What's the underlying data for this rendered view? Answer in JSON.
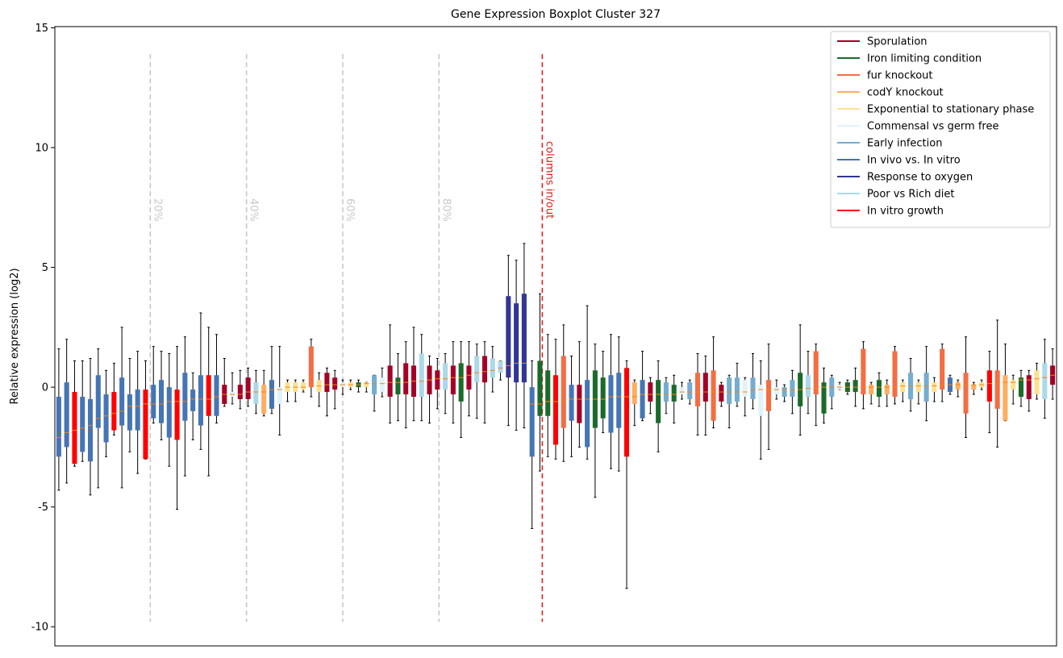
{
  "chart_data": {
    "type": "box",
    "title": "Gene Expression Boxplot Cluster 327",
    "ylabel": "Relative expression (log2)",
    "ylim": [
      -10.8,
      15.05
    ],
    "yticks": [
      -10,
      -5,
      0,
      5,
      10,
      15
    ],
    "legend": "upper right",
    "median_color": "#ff7f0e",
    "whisker_color": "#000000",
    "series": [
      {
        "name": "Sporulation",
        "color": "#a50026"
      },
      {
        "name": "Iron limiting condition",
        "color": "#1a6b2a"
      },
      {
        "name": "fur knockout",
        "color": "#f46d43"
      },
      {
        "name": "codY knockout",
        "color": "#fdae61"
      },
      {
        "name": "Exponential to stationary phase",
        "color": "#fee090"
      },
      {
        "name": "Commensal vs germ free",
        "color": "#e0f3f8"
      },
      {
        "name": "Early infection",
        "color": "#74add1"
      },
      {
        "name": "In vivo vs. In vitro",
        "color": "#4575b4"
      },
      {
        "name": "Response to oxygen",
        "color": "#313695"
      },
      {
        "name": "Poor vs Rich diet",
        "color": "#abd9e9"
      },
      {
        "name": "In vitro growth",
        "color": "#ff0000"
      }
    ],
    "vline_range": [
      -9.8,
      13.9
    ],
    "vlines": [
      {
        "x": 12.6,
        "label": "20%",
        "color": "#c8c8c8"
      },
      {
        "x": 24.8,
        "label": "40%",
        "color": "#c8c8c8"
      },
      {
        "x": 37.0,
        "label": "60%",
        "color": "#c8c8c8"
      },
      {
        "x": 49.2,
        "label": "80%",
        "color": "#c8c8c8"
      },
      {
        "x": 62.3,
        "label": "columns in/out",
        "color": "#e0201b"
      }
    ],
    "boxes": [
      {
        "group": 7,
        "stats": [
          -4.3,
          -2.9,
          -2.1,
          -0.4,
          1.6
        ]
      },
      {
        "group": 7,
        "stats": [
          -4,
          -2.5,
          -1.9,
          0.2,
          2
        ]
      },
      {
        "group": 10,
        "stats": [
          -3.3,
          -3.2,
          -1.8,
          -0.2,
          1.1
        ]
      },
      {
        "group": 7,
        "stats": [
          -3.1,
          -2.7,
          -1.7,
          -0.4,
          1.1
        ]
      },
      {
        "group": 7,
        "stats": [
          -4.5,
          -3.1,
          -1.6,
          -0.5,
          1.2
        ]
      },
      {
        "group": 7,
        "stats": [
          -4.2,
          -1.7,
          -1.3,
          0.5,
          1.6
        ]
      },
      {
        "group": 7,
        "stats": [
          -2.9,
          -2.3,
          -1.2,
          -0.3,
          0.7
        ]
      },
      {
        "group": 10,
        "stats": [
          -2,
          -1.8,
          -1.1,
          -0.2,
          1
        ]
      },
      {
        "group": 7,
        "stats": [
          -4.2,
          -1.6,
          -1,
          0.4,
          2.5
        ]
      },
      {
        "group": 7,
        "stats": [
          -2.7,
          -1.8,
          -0.8,
          -0.3,
          1.2
        ]
      },
      {
        "group": 7,
        "stats": [
          -3.6,
          -1.8,
          -0.8,
          -0.1,
          1.5
        ]
      },
      {
        "group": 10,
        "stats": [
          -3,
          -3,
          -0.7,
          -0.1,
          1.1
        ]
      },
      {
        "group": 7,
        "stats": [
          -1.5,
          -1.3,
          -0.7,
          0.1,
          1.7
        ]
      },
      {
        "group": 7,
        "stats": [
          -2.2,
          -1.5,
          -0.7,
          0.3,
          1.5
        ]
      },
      {
        "group": 7,
        "stats": [
          -3.3,
          -2.1,
          -0.6,
          0,
          1.4
        ]
      },
      {
        "group": 10,
        "stats": [
          -5.1,
          -2.2,
          -0.6,
          -0.1,
          1.7
        ]
      },
      {
        "group": 7,
        "stats": [
          -3.7,
          -1.4,
          -0.6,
          0.6,
          2.1
        ]
      },
      {
        "group": 7,
        "stats": [
          -2.2,
          -1,
          -0.5,
          -0.1,
          0.6
        ]
      },
      {
        "group": 7,
        "stats": [
          -2.6,
          -1.6,
          -0.5,
          0.5,
          3.1
        ]
      },
      {
        "group": 10,
        "stats": [
          -3.7,
          -1.2,
          -0.5,
          0.5,
          2.5
        ]
      },
      {
        "group": 7,
        "stats": [
          -1.5,
          -1.2,
          -0.4,
          0.5,
          2.2
        ]
      },
      {
        "group": 0,
        "stats": [
          -0.8,
          -0.7,
          -0.3,
          0.1,
          1.2
        ]
      },
      {
        "group": 5,
        "stats": [
          -0.7,
          -0.4,
          -0.3,
          -0.2,
          0.6
        ]
      },
      {
        "group": 0,
        "stats": [
          -0.9,
          -0.5,
          -0.3,
          0.1,
          0.7
        ]
      },
      {
        "group": 0,
        "stats": [
          -0.8,
          -0.5,
          -0.2,
          0.4,
          0.8
        ]
      },
      {
        "group": 9,
        "stats": [
          -1.1,
          -0.7,
          -0.2,
          0.2,
          0.7
        ]
      },
      {
        "group": 3,
        "stats": [
          -1.2,
          -1.1,
          -0.2,
          0.1,
          0.7
        ]
      },
      {
        "group": 7,
        "stats": [
          -1.1,
          -0.9,
          -0.1,
          0.3,
          1.7
        ]
      },
      {
        "group": 5,
        "stats": [
          -2,
          -0.7,
          -0.1,
          0,
          1.7
        ]
      },
      {
        "group": 4,
        "stats": [
          -0.6,
          -0.2,
          0,
          0.2,
          0.3
        ]
      },
      {
        "group": 4,
        "stats": [
          -0.6,
          -0.2,
          0,
          0.2,
          0.3
        ]
      },
      {
        "group": 4,
        "stats": [
          -0.2,
          -0.1,
          0,
          0.2,
          0.3
        ]
      },
      {
        "group": 2,
        "stats": [
          -0.4,
          0,
          0.05,
          1.7,
          2
        ]
      },
      {
        "group": 4,
        "stats": [
          -0.8,
          -0.2,
          0.05,
          0.3,
          0.6
        ]
      },
      {
        "group": 0,
        "stats": [
          -1.2,
          -0.2,
          0.1,
          0.6,
          0.8
        ]
      },
      {
        "group": 0,
        "stats": [
          -0.9,
          -0.1,
          0.1,
          0.4,
          0.7
        ]
      },
      {
        "group": 5,
        "stats": [
          -0.3,
          0,
          0.1,
          0.2,
          0.3
        ]
      },
      {
        "group": 4,
        "stats": [
          -0.1,
          0,
          0.1,
          0.2,
          0.3
        ]
      },
      {
        "group": 1,
        "stats": [
          -0.2,
          0,
          0.1,
          0.2,
          0.3
        ]
      },
      {
        "group": 4,
        "stats": [
          -0.2,
          0,
          0.15,
          0.2,
          0.2
        ]
      },
      {
        "group": 6,
        "stats": [
          -1,
          -0.3,
          0.15,
          0.5,
          0.5
        ]
      },
      {
        "group": 5,
        "stats": [
          -0.4,
          -0.2,
          0.15,
          0.4,
          0.8
        ]
      },
      {
        "group": 0,
        "stats": [
          -1.5,
          -0.4,
          0.2,
          0.9,
          2.6
        ]
      },
      {
        "group": 1,
        "stats": [
          -1.4,
          -0.3,
          0.2,
          0.4,
          1.4
        ]
      },
      {
        "group": 0,
        "stats": [
          -1.7,
          -0.3,
          0.2,
          1,
          1.9
        ]
      },
      {
        "group": 0,
        "stats": [
          -1.4,
          -0.4,
          0.25,
          0.9,
          2.5
        ]
      },
      {
        "group": 9,
        "stats": [
          -1.4,
          -0.4,
          0.25,
          1.4,
          2.2
        ]
      },
      {
        "group": 0,
        "stats": [
          -1.5,
          -0.3,
          0.3,
          0.9,
          1.3
        ]
      },
      {
        "group": 0,
        "stats": [
          -0.9,
          -0.1,
          0.35,
          0.7,
          1.2
        ]
      },
      {
        "group": 9,
        "stats": [
          -1.1,
          -0.1,
          0.35,
          1,
          1.4
        ]
      },
      {
        "group": 0,
        "stats": [
          -1.5,
          -0.3,
          0.4,
          0.9,
          1.9
        ]
      },
      {
        "group": 1,
        "stats": [
          -2.1,
          -0.6,
          0.4,
          1,
          1.9
        ]
      },
      {
        "group": 0,
        "stats": [
          -1.2,
          -0.1,
          0.5,
          0.9,
          1.9
        ]
      },
      {
        "group": 9,
        "stats": [
          -1.3,
          0.2,
          0.6,
          1.3,
          1.8
        ]
      },
      {
        "group": 0,
        "stats": [
          -1.5,
          0.2,
          0.65,
          1.3,
          1.9
        ]
      },
      {
        "group": 9,
        "stats": [
          -0.2,
          0.4,
          0.7,
          1.2,
          1.7
        ]
      },
      {
        "group": 9,
        "stats": [
          0.3,
          0.6,
          0.8,
          1.1,
          1.1
        ]
      },
      {
        "group": 8,
        "stats": [
          -1.6,
          0.4,
          0.9,
          3.8,
          5.5
        ]
      },
      {
        "group": 8,
        "stats": [
          -1.8,
          0.2,
          1,
          3.5,
          5.3
        ]
      },
      {
        "group": 8,
        "stats": [
          -1.7,
          0.2,
          1,
          3.9,
          6
        ]
      },
      {
        "group": 7,
        "stats": [
          -5.9,
          -2.9,
          -0.7,
          0,
          1.1
        ]
      },
      {
        "group": 1,
        "stats": [
          -3.5,
          -1.2,
          -0.7,
          1.1,
          3.9
        ]
      },
      {
        "group": 1,
        "stats": [
          -2.9,
          -1.2,
          -0.6,
          0.7,
          2.2
        ]
      },
      {
        "group": 10,
        "stats": [
          -3,
          -2.4,
          -0.6,
          0.5,
          2
        ]
      },
      {
        "group": 2,
        "stats": [
          -3.1,
          -1.7,
          -0.6,
          1.3,
          2.6
        ]
      },
      {
        "group": 7,
        "stats": [
          -2.9,
          -1.4,
          -0.5,
          0.1,
          1.3
        ]
      },
      {
        "group": 0,
        "stats": [
          -2.5,
          -1.5,
          -0.5,
          0.1,
          1.9
        ]
      },
      {
        "group": 7,
        "stats": [
          -3,
          -2.5,
          -0.5,
          0.3,
          3.4
        ]
      },
      {
        "group": 1,
        "stats": [
          -4.6,
          -1.7,
          -0.5,
          0.7,
          1.8
        ]
      },
      {
        "group": 1,
        "stats": [
          -1.9,
          -1.3,
          -0.5,
          0.4,
          1.5
        ]
      },
      {
        "group": 7,
        "stats": [
          -3.4,
          -1.9,
          -0.4,
          0.5,
          2.2
        ]
      },
      {
        "group": 7,
        "stats": [
          -3.5,
          -1.7,
          -0.4,
          0.6,
          2.1
        ]
      },
      {
        "group": 10,
        "stats": [
          -8.4,
          -2.9,
          -0.4,
          0.8,
          1.1
        ]
      },
      {
        "group": 3,
        "stats": [
          -1.6,
          -0.7,
          -0.4,
          0.2,
          0.3
        ]
      },
      {
        "group": 7,
        "stats": [
          -1.4,
          -1.3,
          -0.3,
          0.3,
          1.5
        ]
      },
      {
        "group": 0,
        "stats": [
          -1.1,
          -0.6,
          -0.3,
          0.2,
          0.4
        ]
      },
      {
        "group": 1,
        "stats": [
          -2.7,
          -1.5,
          -0.3,
          0.3,
          1.1
        ]
      },
      {
        "group": 6,
        "stats": [
          -1.1,
          -0.6,
          -0.3,
          0.2,
          0.4
        ]
      },
      {
        "group": 1,
        "stats": [
          -1.5,
          -0.6,
          -0.3,
          0.1,
          0.5
        ]
      },
      {
        "group": 5,
        "stats": [
          -0.5,
          -0.3,
          -0.2,
          0,
          0.2
        ]
      },
      {
        "group": 6,
        "stats": [
          -0.7,
          -0.5,
          -0.2,
          0.2,
          0.3
        ]
      },
      {
        "group": 2,
        "stats": [
          -2,
          -0.8,
          -0.2,
          0.6,
          1.4
        ]
      },
      {
        "group": 0,
        "stats": [
          -2,
          -0.6,
          -0.2,
          0.6,
          1.3
        ]
      },
      {
        "group": 2,
        "stats": [
          -1.7,
          -1.4,
          -0.2,
          0.7,
          2.1
        ]
      },
      {
        "group": 0,
        "stats": [
          -0.8,
          -0.6,
          -0.2,
          0.1,
          0.2
        ]
      },
      {
        "group": 6,
        "stats": [
          -1.7,
          -0.7,
          -0.2,
          0.4,
          0.5
        ]
      },
      {
        "group": 6,
        "stats": [
          -0.8,
          -0.6,
          -0.2,
          0.4,
          1
        ]
      },
      {
        "group": 5,
        "stats": [
          -1.2,
          -0.4,
          -0.2,
          0.3,
          0.4
        ]
      },
      {
        "group": 6,
        "stats": [
          -0.9,
          -0.5,
          -0.1,
          0.4,
          1.4
        ]
      },
      {
        "group": 5,
        "stats": [
          -3,
          -1.2,
          -0.1,
          0.1,
          1.1
        ]
      },
      {
        "group": 2,
        "stats": [
          -2.6,
          -1,
          -0.1,
          0.3,
          1.8
        ]
      },
      {
        "group": 5,
        "stats": [
          -0.5,
          -0.3,
          -0.1,
          0,
          0.3
        ]
      },
      {
        "group": 6,
        "stats": [
          -0.6,
          -0.4,
          -0.1,
          0,
          0.1
        ]
      },
      {
        "group": 6,
        "stats": [
          -1.1,
          -0.4,
          -0.1,
          0.3,
          0.7
        ]
      },
      {
        "group": 1,
        "stats": [
          -2,
          -0.8,
          -0.1,
          0.6,
          2.6
        ]
      },
      {
        "group": 9,
        "stats": [
          -1.1,
          -0.4,
          -0.05,
          0.5,
          1.5
        ]
      },
      {
        "group": 2,
        "stats": [
          -1.6,
          -0.3,
          -0.05,
          1.5,
          1.8
        ]
      },
      {
        "group": 1,
        "stats": [
          -1.5,
          -1.1,
          0,
          0.2,
          0.8
        ]
      },
      {
        "group": 6,
        "stats": [
          -0.9,
          -0.4,
          0,
          0.4,
          0.5
        ]
      },
      {
        "group": 5,
        "stats": [
          -0.1,
          -0.1,
          0,
          0.1,
          0.2
        ]
      },
      {
        "group": 1,
        "stats": [
          -0.3,
          -0.2,
          0,
          0.2,
          0.3
        ]
      },
      {
        "group": 1,
        "stats": [
          -0.8,
          -0.2,
          0,
          0.3,
          0.8
        ]
      },
      {
        "group": 2,
        "stats": [
          -0.9,
          -0.3,
          0,
          1.6,
          1.9
        ]
      },
      {
        "group": 3,
        "stats": [
          -0.7,
          -0.3,
          0,
          0.1,
          0.2
        ]
      },
      {
        "group": 1,
        "stats": [
          -0.8,
          -0.4,
          0,
          0.3,
          0.6
        ]
      },
      {
        "group": 3,
        "stats": [
          -0.8,
          -0.3,
          0,
          0.1,
          0.3
        ]
      },
      {
        "group": 2,
        "stats": [
          -0.7,
          -0.4,
          0,
          1.5,
          1.7
        ]
      },
      {
        "group": 4,
        "stats": [
          -0.6,
          -0.2,
          0.05,
          0.2,
          0.3
        ]
      },
      {
        "group": 6,
        "stats": [
          -1,
          -0.5,
          0.05,
          0.6,
          1.2
        ]
      },
      {
        "group": 4,
        "stats": [
          -0.7,
          -0.2,
          0.05,
          0.2,
          0.3
        ]
      },
      {
        "group": 6,
        "stats": [
          -1.4,
          -0.6,
          0.05,
          0.6,
          1.7
        ]
      },
      {
        "group": 4,
        "stats": [
          -0.6,
          -0.2,
          0.05,
          0.2,
          0.4
        ]
      },
      {
        "group": 2,
        "stats": [
          -0.6,
          -0.1,
          0.1,
          1.6,
          1.8
        ]
      },
      {
        "group": 7,
        "stats": [
          -0.3,
          -0.2,
          0.1,
          0.4,
          0.5
        ]
      },
      {
        "group": 3,
        "stats": [
          -0.4,
          -0.1,
          0.1,
          0.2,
          0.3
        ]
      },
      {
        "group": 2,
        "stats": [
          -2.1,
          -1.1,
          0.1,
          0.6,
          2.1
        ]
      },
      {
        "group": 3,
        "stats": [
          -0.3,
          -0.1,
          0.1,
          0.1,
          0.2
        ]
      },
      {
        "group": 4,
        "stats": [
          -0.1,
          0,
          0.1,
          0.2,
          0.3
        ]
      },
      {
        "group": 10,
        "stats": [
          -1.9,
          -0.6,
          0.15,
          0.7,
          1.5
        ]
      },
      {
        "group": 2,
        "stats": [
          -2.5,
          -0.9,
          0.15,
          0.7,
          2.8
        ]
      },
      {
        "group": 3,
        "stats": [
          -1.4,
          -1.4,
          0.2,
          0.5,
          1.8
        ]
      },
      {
        "group": 4,
        "stats": [
          -0.7,
          -0.1,
          0.2,
          0.3,
          0.5
        ]
      },
      {
        "group": 1,
        "stats": [
          -0.8,
          -0.4,
          0.3,
          0.4,
          0.7
        ]
      },
      {
        "group": 0,
        "stats": [
          -1,
          -0.5,
          0.3,
          0.5,
          0.7
        ]
      },
      {
        "group": 4,
        "stats": [
          -0.5,
          -0.3,
          0.35,
          0.7,
          1
        ]
      },
      {
        "group": 9,
        "stats": [
          -1.3,
          -0.5,
          0.4,
          1,
          2
        ]
      },
      {
        "group": 0,
        "stats": [
          -0.5,
          0.1,
          0.5,
          0.9,
          1.6
        ]
      }
    ]
  }
}
